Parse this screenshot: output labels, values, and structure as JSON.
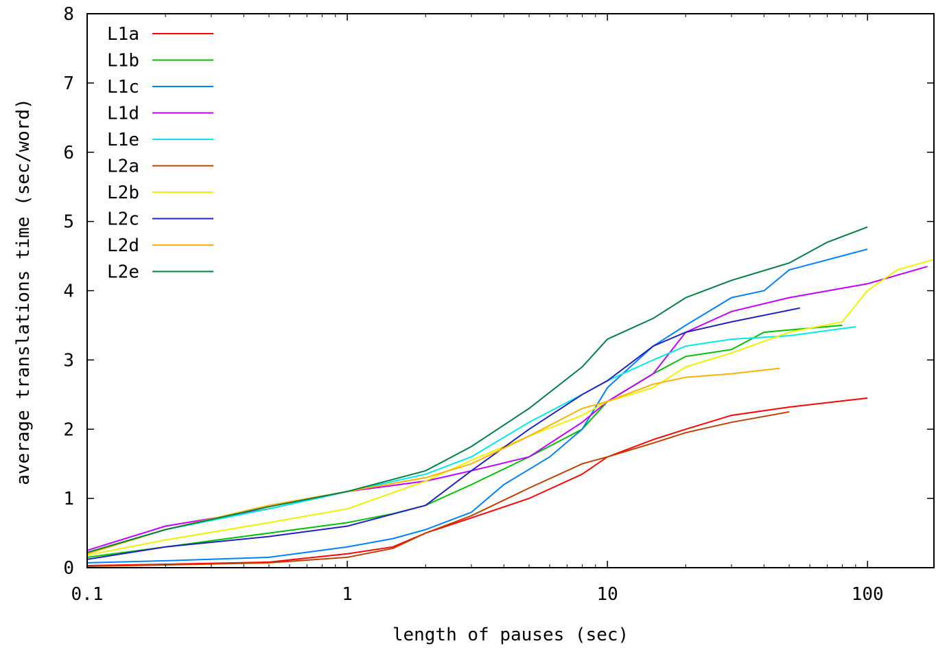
{
  "chart_data": {
    "type": "line",
    "x_scale": "log",
    "xlabel": "length of pauses (sec)",
    "ylabel": "average translations time (sec/word)",
    "xlim": [
      0.1,
      180
    ],
    "ylim": [
      0,
      8
    ],
    "x_ticks": [
      {
        "value": 0.1,
        "label": "0.1"
      },
      {
        "value": 1,
        "label": "1"
      },
      {
        "value": 10,
        "label": "10"
      },
      {
        "value": 100,
        "label": "100"
      }
    ],
    "y_ticks": [
      {
        "value": 0,
        "label": "0"
      },
      {
        "value": 1,
        "label": "1"
      },
      {
        "value": 2,
        "label": "2"
      },
      {
        "value": 3,
        "label": "3"
      },
      {
        "value": 4,
        "label": "4"
      },
      {
        "value": 5,
        "label": "5"
      },
      {
        "value": 6,
        "label": "6"
      },
      {
        "value": 7,
        "label": "7"
      },
      {
        "value": 8,
        "label": "8"
      }
    ],
    "grid": false,
    "legend_position": "top-left",
    "series": [
      {
        "name": "L1a",
        "color": "#ff0000",
        "points": [
          [
            0.1,
            0.03
          ],
          [
            0.2,
            0.05
          ],
          [
            0.5,
            0.08
          ],
          [
            1,
            0.2
          ],
          [
            1.5,
            0.3
          ],
          [
            2,
            0.5
          ],
          [
            3,
            0.72
          ],
          [
            5,
            1.0
          ],
          [
            8,
            1.35
          ],
          [
            10,
            1.6
          ],
          [
            15,
            1.85
          ],
          [
            20,
            2.0
          ],
          [
            30,
            2.2
          ],
          [
            50,
            2.32
          ],
          [
            100,
            2.45
          ]
        ]
      },
      {
        "name": "L1b",
        "color": "#00c000",
        "points": [
          [
            0.1,
            0.15
          ],
          [
            0.2,
            0.3
          ],
          [
            0.5,
            0.5
          ],
          [
            1,
            0.65
          ],
          [
            1.5,
            0.78
          ],
          [
            2,
            0.9
          ],
          [
            3,
            1.2
          ],
          [
            5,
            1.6
          ],
          [
            8,
            2.0
          ],
          [
            10,
            2.4
          ],
          [
            15,
            2.8
          ],
          [
            20,
            3.05
          ],
          [
            30,
            3.15
          ],
          [
            40,
            3.4
          ],
          [
            80,
            3.5
          ]
        ]
      },
      {
        "name": "L1c",
        "color": "#0080ff",
        "points": [
          [
            0.1,
            0.07
          ],
          [
            0.2,
            0.1
          ],
          [
            0.5,
            0.15
          ],
          [
            1,
            0.3
          ],
          [
            1.5,
            0.42
          ],
          [
            2,
            0.55
          ],
          [
            3,
            0.8
          ],
          [
            4,
            1.2
          ],
          [
            6,
            1.6
          ],
          [
            8,
            2.0
          ],
          [
            10,
            2.6
          ],
          [
            15,
            3.2
          ],
          [
            20,
            3.5
          ],
          [
            30,
            3.9
          ],
          [
            40,
            4.0
          ],
          [
            50,
            4.3
          ],
          [
            100,
            4.6
          ]
        ]
      },
      {
        "name": "L1d",
        "color": "#c000ff",
        "points": [
          [
            0.1,
            0.25
          ],
          [
            0.2,
            0.6
          ],
          [
            0.5,
            0.85
          ],
          [
            1,
            1.1
          ],
          [
            2,
            1.25
          ],
          [
            3,
            1.4
          ],
          [
            5,
            1.6
          ],
          [
            8,
            2.1
          ],
          [
            10,
            2.4
          ],
          [
            15,
            2.8
          ],
          [
            20,
            3.4
          ],
          [
            30,
            3.7
          ],
          [
            50,
            3.9
          ],
          [
            100,
            4.1
          ],
          [
            170,
            4.35
          ]
        ]
      },
      {
        "name": "L1e",
        "color": "#00e8e8",
        "points": [
          [
            0.1,
            0.2
          ],
          [
            0.2,
            0.55
          ],
          [
            0.5,
            0.85
          ],
          [
            1,
            1.1
          ],
          [
            2,
            1.35
          ],
          [
            3,
            1.6
          ],
          [
            5,
            2.1
          ],
          [
            8,
            2.5
          ],
          [
            10,
            2.7
          ],
          [
            15,
            3.0
          ],
          [
            20,
            3.2
          ],
          [
            30,
            3.3
          ],
          [
            50,
            3.35
          ],
          [
            90,
            3.48
          ]
        ]
      },
      {
        "name": "L2a",
        "color": "#c04000",
        "points": [
          [
            0.1,
            0.02
          ],
          [
            0.2,
            0.04
          ],
          [
            0.5,
            0.07
          ],
          [
            1,
            0.15
          ],
          [
            1.5,
            0.28
          ],
          [
            2,
            0.5
          ],
          [
            3,
            0.75
          ],
          [
            5,
            1.15
          ],
          [
            8,
            1.5
          ],
          [
            10,
            1.6
          ],
          [
            15,
            1.8
          ],
          [
            20,
            1.95
          ],
          [
            30,
            2.1
          ],
          [
            50,
            2.25
          ]
        ]
      },
      {
        "name": "L2b",
        "color": "#f0f000",
        "points": [
          [
            0.1,
            0.18
          ],
          [
            0.2,
            0.4
          ],
          [
            0.5,
            0.65
          ],
          [
            1,
            0.85
          ],
          [
            2,
            1.25
          ],
          [
            3,
            1.55
          ],
          [
            5,
            1.9
          ],
          [
            8,
            2.2
          ],
          [
            10,
            2.4
          ],
          [
            15,
            2.6
          ],
          [
            20,
            2.9
          ],
          [
            30,
            3.1
          ],
          [
            50,
            3.4
          ],
          [
            80,
            3.55
          ],
          [
            100,
            4.0
          ],
          [
            130,
            4.3
          ],
          [
            180,
            4.45
          ]
        ]
      },
      {
        "name": "L2c",
        "color": "#2020c0",
        "points": [
          [
            0.1,
            0.12
          ],
          [
            0.2,
            0.3
          ],
          [
            0.5,
            0.45
          ],
          [
            1,
            0.6
          ],
          [
            2,
            0.9
          ],
          [
            3,
            1.4
          ],
          [
            5,
            2.0
          ],
          [
            8,
            2.5
          ],
          [
            10,
            2.7
          ],
          [
            15,
            3.2
          ],
          [
            20,
            3.4
          ],
          [
            30,
            3.55
          ],
          [
            55,
            3.75
          ]
        ]
      },
      {
        "name": "L2d",
        "color": "#ffb000",
        "points": [
          [
            0.1,
            0.2
          ],
          [
            0.2,
            0.55
          ],
          [
            0.5,
            0.9
          ],
          [
            1,
            1.1
          ],
          [
            2,
            1.3
          ],
          [
            3,
            1.5
          ],
          [
            5,
            1.9
          ],
          [
            8,
            2.3
          ],
          [
            10,
            2.4
          ],
          [
            15,
            2.65
          ],
          [
            20,
            2.75
          ],
          [
            30,
            2.8
          ],
          [
            46,
            2.88
          ]
        ]
      },
      {
        "name": "L2e",
        "color": "#008040",
        "points": [
          [
            0.1,
            0.22
          ],
          [
            0.2,
            0.55
          ],
          [
            0.5,
            0.88
          ],
          [
            1,
            1.1
          ],
          [
            2,
            1.4
          ],
          [
            3,
            1.75
          ],
          [
            5,
            2.3
          ],
          [
            8,
            2.9
          ],
          [
            10,
            3.3
          ],
          [
            15,
            3.6
          ],
          [
            20,
            3.9
          ],
          [
            30,
            4.15
          ],
          [
            50,
            4.4
          ],
          [
            70,
            4.7
          ],
          [
            100,
            4.92
          ]
        ]
      }
    ]
  }
}
